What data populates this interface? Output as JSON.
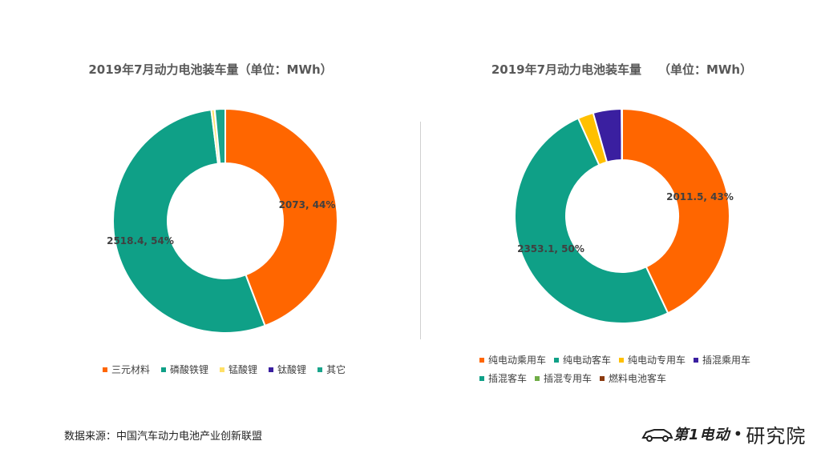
{
  "source": "数据来源：中国汽车动力电池产业创新联盟",
  "logo": {
    "brand": "第1电动",
    "dot": "•",
    "suffix": "研究院"
  },
  "chart_data": [
    {
      "type": "pie",
      "donut": true,
      "title": "2019年7月动力电池装车量（单位：MWh）",
      "categories": [
        "三元材料",
        "磷酸铁锂",
        "锰酸锂",
        "钛酸锂",
        "其它"
      ],
      "values": [
        2073,
        2518.4,
        22,
        2,
        70
      ],
      "labels": [
        "2073, 44%",
        "2518.4, 54%",
        "",
        "",
        ""
      ],
      "colors": [
        "#FF6600",
        "#0FA087",
        "#FFE066",
        "#3A1FA0",
        "#1AA58C"
      ],
      "legend": "bottom"
    },
    {
      "type": "pie",
      "donut": true,
      "title": "2019年7月动力电池装车量    （单位：MWh）",
      "categories": [
        "纯电动乘用车",
        "纯电动客车",
        "纯电动专用车",
        "插混乘用车",
        "插混客车",
        "插混专用车",
        "燃料电池客车"
      ],
      "values": [
        2011.5,
        2353.1,
        110,
        200,
        2,
        1,
        1
      ],
      "labels": [
        "2011.5, 43%",
        "2353.1, 50%",
        "",
        "",
        "",
        "",
        ""
      ],
      "colors": [
        "#FF6600",
        "#0FA087",
        "#FFC000",
        "#3A1FA0",
        "#0FA087",
        "#70AD47",
        "#8B3A0F"
      ],
      "legend": "bottom"
    }
  ]
}
